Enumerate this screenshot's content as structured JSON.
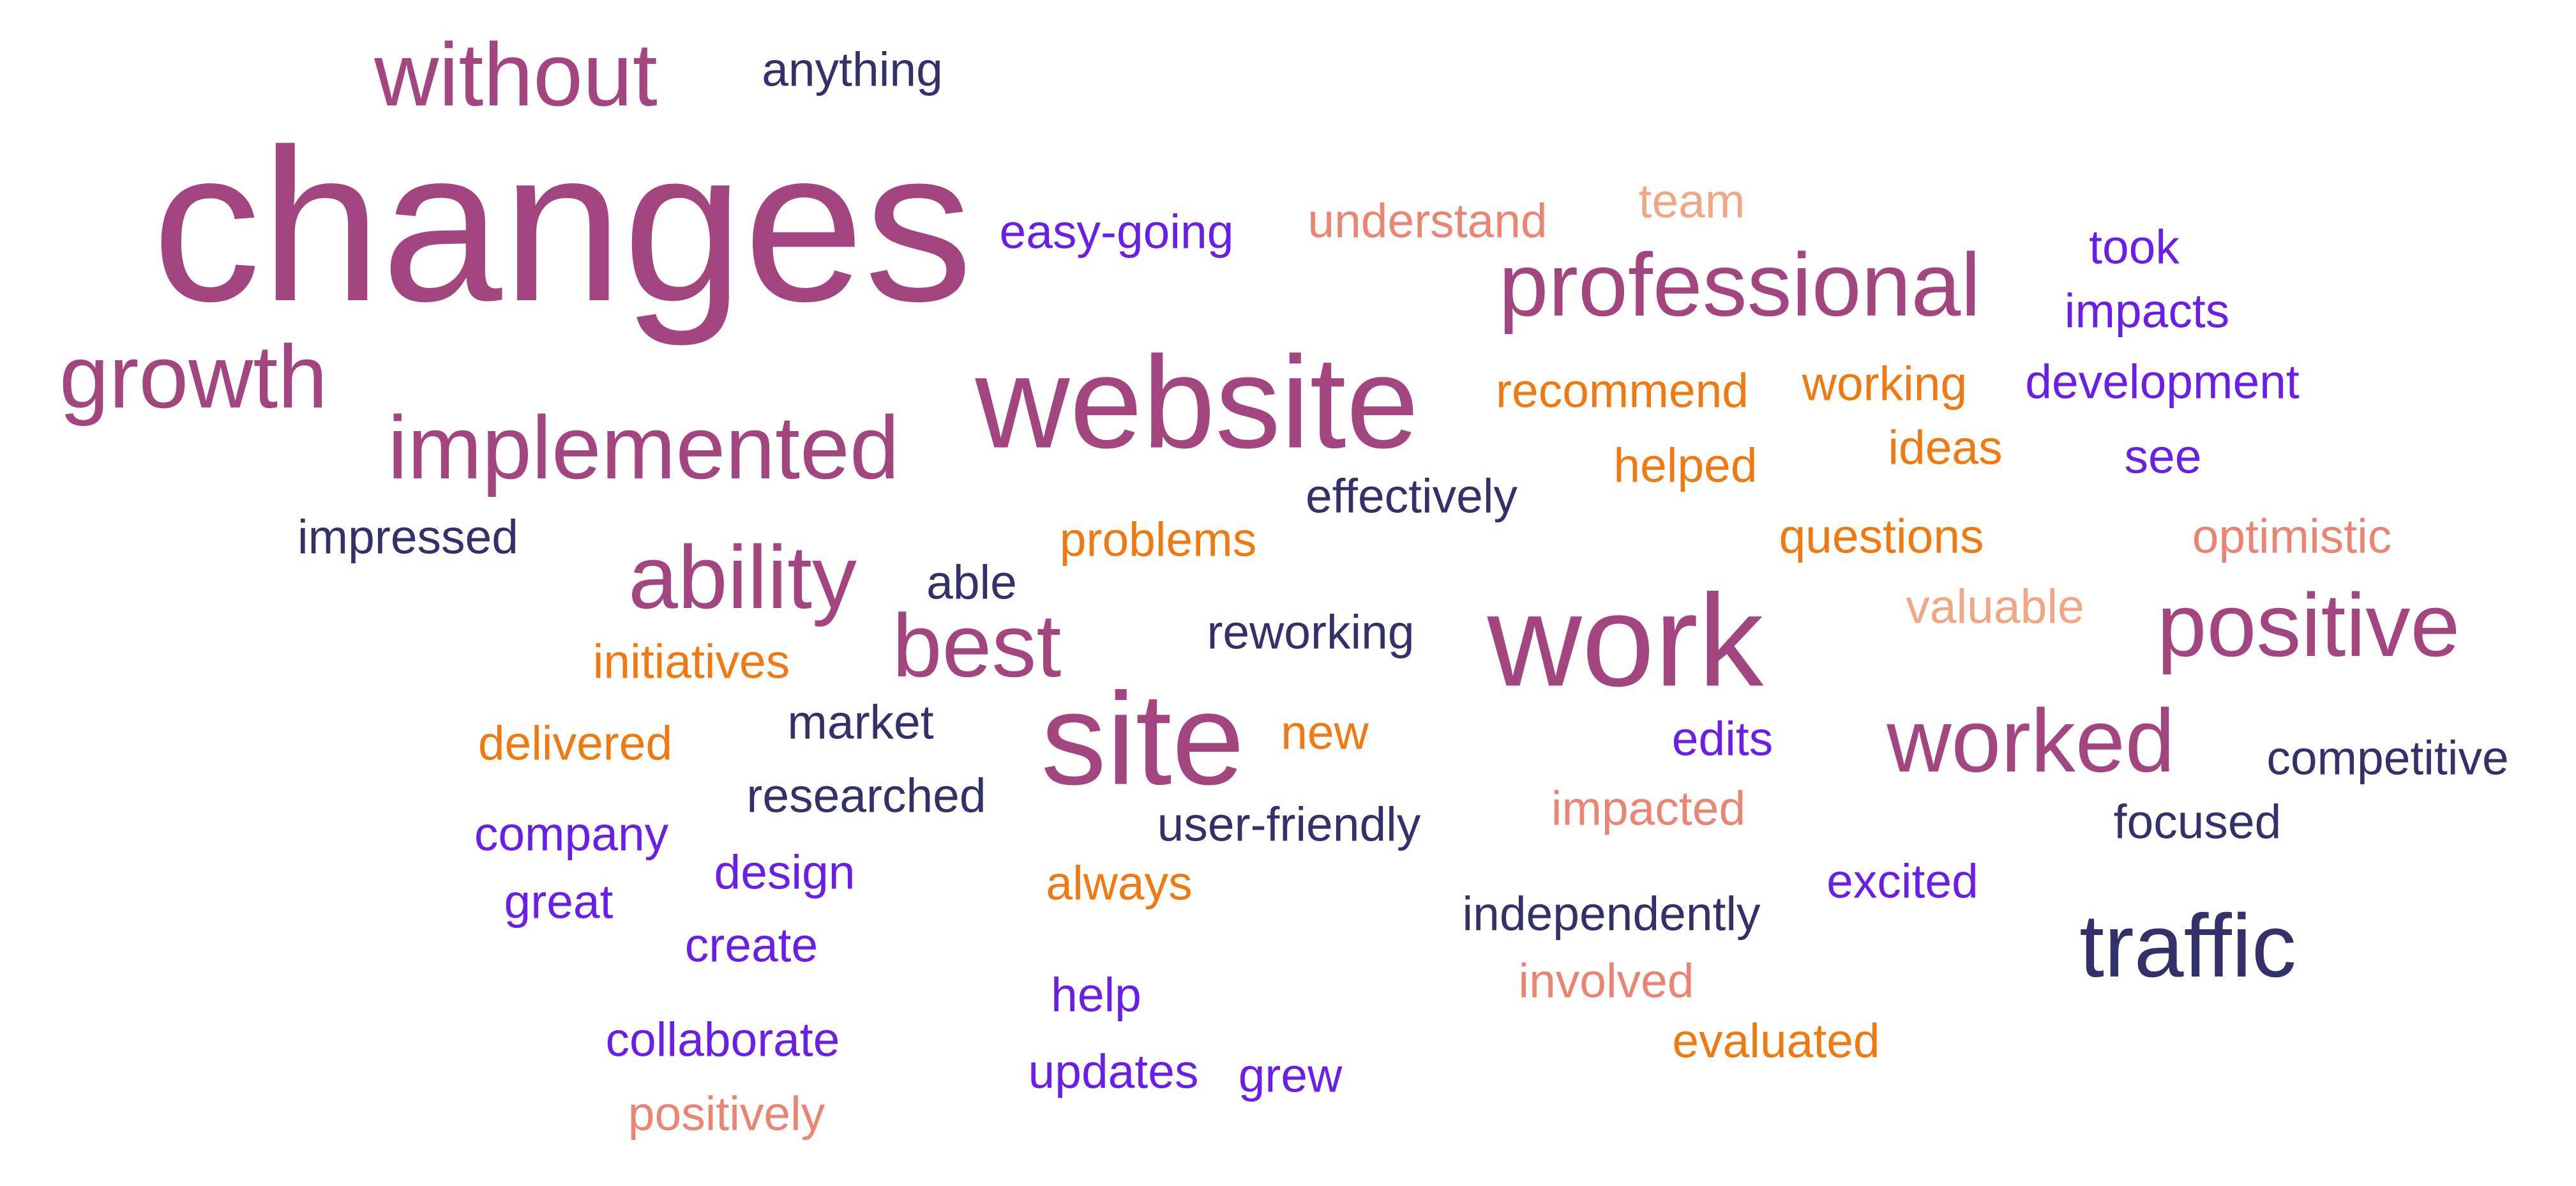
{
  "colors": {
    "magenta": "#a3457f",
    "navy": "#34306a",
    "purple": "#6a1fe8",
    "orange": "#f07a12",
    "salmon": "#ea8574",
    "peach": "#f0a784"
  },
  "words": [
    {
      "text": "changes",
      "color": "magenta",
      "weight": 1.0
    },
    {
      "text": "website",
      "color": "magenta",
      "weight": 0.62
    },
    {
      "text": "work",
      "color": "magenta",
      "weight": 0.62
    },
    {
      "text": "site",
      "color": "magenta",
      "weight": 0.62
    },
    {
      "text": "without",
      "color": "magenta",
      "weight": 0.5
    },
    {
      "text": "growth",
      "color": "magenta",
      "weight": 0.5
    },
    {
      "text": "implemented",
      "color": "magenta",
      "weight": 0.5
    },
    {
      "text": "professional",
      "color": "magenta",
      "weight": 0.5
    },
    {
      "text": "ability",
      "color": "magenta",
      "weight": 0.5
    },
    {
      "text": "best",
      "color": "magenta",
      "weight": 0.5
    },
    {
      "text": "positive",
      "color": "magenta",
      "weight": 0.5
    },
    {
      "text": "worked",
      "color": "magenta",
      "weight": 0.5
    },
    {
      "text": "traffic",
      "color": "navy",
      "weight": 0.5
    },
    {
      "text": "anything",
      "color": "navy",
      "weight": 0.3
    },
    {
      "text": "easy-going",
      "color": "purple",
      "weight": 0.3
    },
    {
      "text": "understand",
      "color": "salmon",
      "weight": 0.3
    },
    {
      "text": "team",
      "color": "peach",
      "weight": 0.3
    },
    {
      "text": "took",
      "color": "purple",
      "weight": 0.3
    },
    {
      "text": "impacts",
      "color": "purple",
      "weight": 0.3
    },
    {
      "text": "recommend",
      "color": "orange",
      "weight": 0.3
    },
    {
      "text": "working",
      "color": "orange",
      "weight": 0.3
    },
    {
      "text": "development",
      "color": "purple",
      "weight": 0.3
    },
    {
      "text": "helped",
      "color": "orange",
      "weight": 0.3
    },
    {
      "text": "ideas",
      "color": "orange",
      "weight": 0.3
    },
    {
      "text": "see",
      "color": "purple",
      "weight": 0.3
    },
    {
      "text": "effectively",
      "color": "navy",
      "weight": 0.3
    },
    {
      "text": "impressed",
      "color": "navy",
      "weight": 0.3
    },
    {
      "text": "problems",
      "color": "orange",
      "weight": 0.3
    },
    {
      "text": "questions",
      "color": "orange",
      "weight": 0.3
    },
    {
      "text": "optimistic",
      "color": "salmon",
      "weight": 0.3
    },
    {
      "text": "able",
      "color": "navy",
      "weight": 0.3
    },
    {
      "text": "valuable",
      "color": "peach",
      "weight": 0.3
    },
    {
      "text": "reworking",
      "color": "navy",
      "weight": 0.3
    },
    {
      "text": "initiatives",
      "color": "orange",
      "weight": 0.3
    },
    {
      "text": "market",
      "color": "navy",
      "weight": 0.3
    },
    {
      "text": "new",
      "color": "orange",
      "weight": 0.3
    },
    {
      "text": "edits",
      "color": "purple",
      "weight": 0.3
    },
    {
      "text": "delivered",
      "color": "orange",
      "weight": 0.3
    },
    {
      "text": "competitive",
      "color": "navy",
      "weight": 0.3
    },
    {
      "text": "researched",
      "color": "navy",
      "weight": 0.3
    },
    {
      "text": "impacted",
      "color": "salmon",
      "weight": 0.3
    },
    {
      "text": "company",
      "color": "purple",
      "weight": 0.3
    },
    {
      "text": "user-friendly",
      "color": "navy",
      "weight": 0.3
    },
    {
      "text": "focused",
      "color": "navy",
      "weight": 0.3
    },
    {
      "text": "design",
      "color": "purple",
      "weight": 0.3
    },
    {
      "text": "always",
      "color": "orange",
      "weight": 0.3
    },
    {
      "text": "excited",
      "color": "purple",
      "weight": 0.3
    },
    {
      "text": "great",
      "color": "purple",
      "weight": 0.3
    },
    {
      "text": "independently",
      "color": "navy",
      "weight": 0.3
    },
    {
      "text": "create",
      "color": "purple",
      "weight": 0.3
    },
    {
      "text": "involved",
      "color": "salmon",
      "weight": 0.3
    },
    {
      "text": "help",
      "color": "purple",
      "weight": 0.3
    },
    {
      "text": "collaborate",
      "color": "purple",
      "weight": 0.3
    },
    {
      "text": "evaluated",
      "color": "orange",
      "weight": 0.3
    },
    {
      "text": "updates",
      "color": "purple",
      "weight": 0.3
    },
    {
      "text": "grew",
      "color": "purple",
      "weight": 0.3
    },
    {
      "text": "positively",
      "color": "salmon",
      "weight": 0.3
    }
  ]
}
